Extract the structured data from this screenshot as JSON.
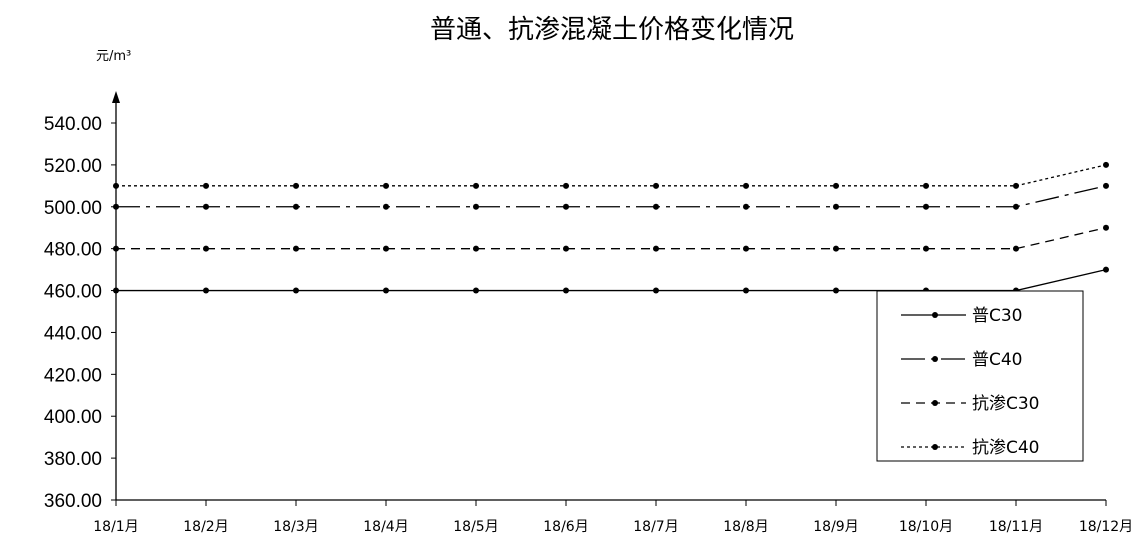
{
  "chart_data": {
    "type": "line",
    "title": "普通、抗渗混凝土价格变化情况",
    "ylabel": "元/m³",
    "ylim": [
      360,
      540
    ],
    "ytick_step": 20,
    "ytick_labels": [
      "360.00",
      "380.00",
      "400.00",
      "420.00",
      "440.00",
      "460.00",
      "480.00",
      "500.00",
      "520.00",
      "540.00"
    ],
    "categories": [
      "18/1月",
      "18/2月",
      "18/3月",
      "18/4月",
      "18/5月",
      "18/6月",
      "18/7月",
      "18/8月",
      "18/9月",
      "18/10月",
      "18/11月",
      "18/12月"
    ],
    "grid": false,
    "legend_position": "lower-right",
    "series": [
      {
        "name": "普C30",
        "style": "solid",
        "values": [
          460,
          460,
          460,
          460,
          460,
          460,
          460,
          460,
          460,
          460,
          460,
          470
        ]
      },
      {
        "name": "普C40",
        "style": "dashdot",
        "values": [
          500,
          500,
          500,
          500,
          500,
          500,
          500,
          500,
          500,
          500,
          500,
          510
        ]
      },
      {
        "name": "抗渗C30",
        "style": "dashed",
        "values": [
          480,
          480,
          480,
          480,
          480,
          480,
          480,
          480,
          480,
          480,
          480,
          490
        ]
      },
      {
        "name": "抗渗C40",
        "style": "dotted",
        "values": [
          510,
          510,
          510,
          510,
          510,
          510,
          510,
          510,
          510,
          510,
          510,
          520
        ]
      }
    ]
  }
}
